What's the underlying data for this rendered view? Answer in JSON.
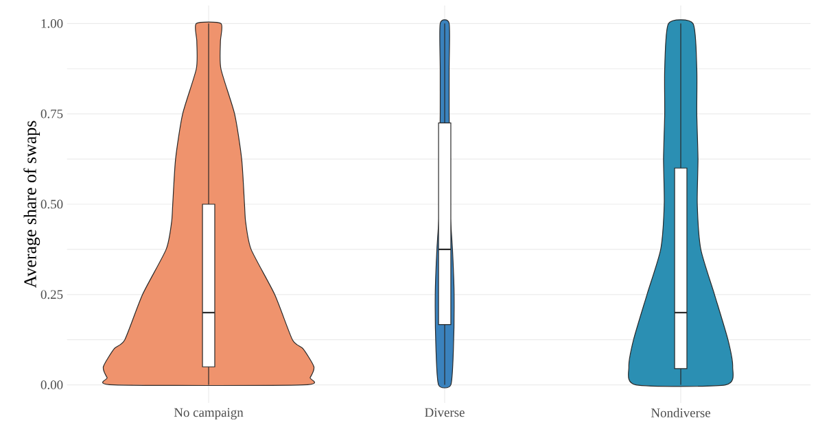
{
  "chart_data": {
    "type": "box",
    "ylabel": "Average share of swaps",
    "categories": [
      "No campaign",
      "Diverse",
      "Nondiverse"
    ],
    "boxes": [
      {
        "low": 0,
        "q1": 0.05,
        "median": 0.2,
        "q3": 0.5,
        "high": 1
      },
      {
        "low": 0,
        "q1": 0.167,
        "median": 0.375,
        "q3": 0.725,
        "high": 1
      },
      {
        "low": 0,
        "q1": 0.045,
        "median": 0.2,
        "q3": 0.6,
        "high": 1
      }
    ],
    "ylim": [
      -0.05,
      1.05
    ],
    "yticks": [
      {
        "value": 0,
        "label": "0.00"
      },
      {
        "value": 0.125,
        "label": null
      },
      {
        "value": 0.25,
        "label": "0.25"
      },
      {
        "value": 0.375,
        "label": null
      },
      {
        "value": 0.5,
        "label": "0.50"
      },
      {
        "value": 0.625,
        "label": null
      },
      {
        "value": 0.75,
        "label": "0.75"
      },
      {
        "value": 0.875,
        "label": null
      },
      {
        "value": 1,
        "label": "1.00"
      }
    ],
    "grid": true
  }
}
